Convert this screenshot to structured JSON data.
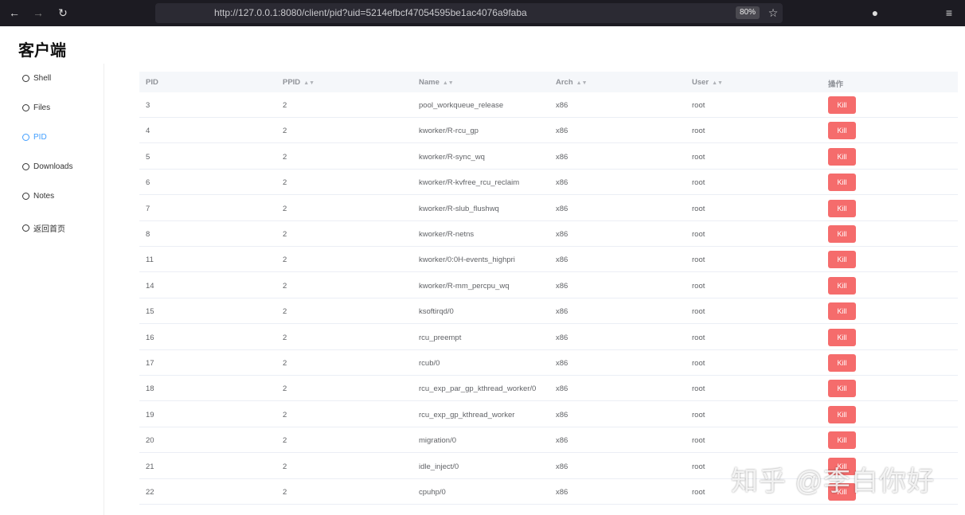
{
  "browser": {
    "url": "http://127.0.0.1:8080/client/pid?uid=5214efbcf47054595be1ac4076a9faba",
    "zoom": "80%"
  },
  "header": {
    "title": "客户端"
  },
  "sidebar": {
    "items": [
      "Shell",
      "Files",
      "PID",
      "Downloads",
      "Notes",
      "返回首页"
    ]
  },
  "table": {
    "columns": [
      "PID",
      "PPID",
      "Name",
      "Arch",
      "User",
      "操作"
    ],
    "rows": [
      [
        "3",
        "2",
        "pool_workqueue_release",
        "x86",
        "root",
        "Kill"
      ],
      [
        "4",
        "2",
        "kworker/R-rcu_gp",
        "x86",
        "root",
        "Kill"
      ],
      [
        "5",
        "2",
        "kworker/R-sync_wq",
        "x86",
        "root",
        "Kill"
      ],
      [
        "6",
        "2",
        "kworker/R-kvfree_rcu_reclaim",
        "x86",
        "root",
        "Kill"
      ],
      [
        "7",
        "2",
        "kworker/R-slub_flushwq",
        "x86",
        "root",
        "Kill"
      ],
      [
        "8",
        "2",
        "kworker/R-netns",
        "x86",
        "root",
        "Kill"
      ],
      [
        "11",
        "2",
        "kworker/0:0H-events_highpri",
        "x86",
        "root",
        "Kill"
      ],
      [
        "14",
        "2",
        "kworker/R-mm_percpu_wq",
        "x86",
        "root",
        "Kill"
      ],
      [
        "15",
        "2",
        "ksoftirqd/0",
        "x86",
        "root",
        "Kill"
      ],
      [
        "16",
        "2",
        "rcu_preempt",
        "x86",
        "root",
        "Kill"
      ],
      [
        "17",
        "2",
        "rcub/0",
        "x86",
        "root",
        "Kill"
      ],
      [
        "18",
        "2",
        "rcu_exp_par_gp_kthread_worker/0",
        "x86",
        "root",
        "Kill"
      ],
      [
        "19",
        "2",
        "rcu_exp_gp_kthread_worker",
        "x86",
        "root",
        "Kill"
      ],
      [
        "20",
        "2",
        "migration/0",
        "x86",
        "root",
        "Kill"
      ],
      [
        "21",
        "2",
        "idle_inject/0",
        "x86",
        "root",
        "Kill"
      ],
      [
        "22",
        "2",
        "cpuhp/0",
        "x86",
        "root",
        "Kill"
      ]
    ]
  },
  "watermark": "知乎 @李白你好"
}
